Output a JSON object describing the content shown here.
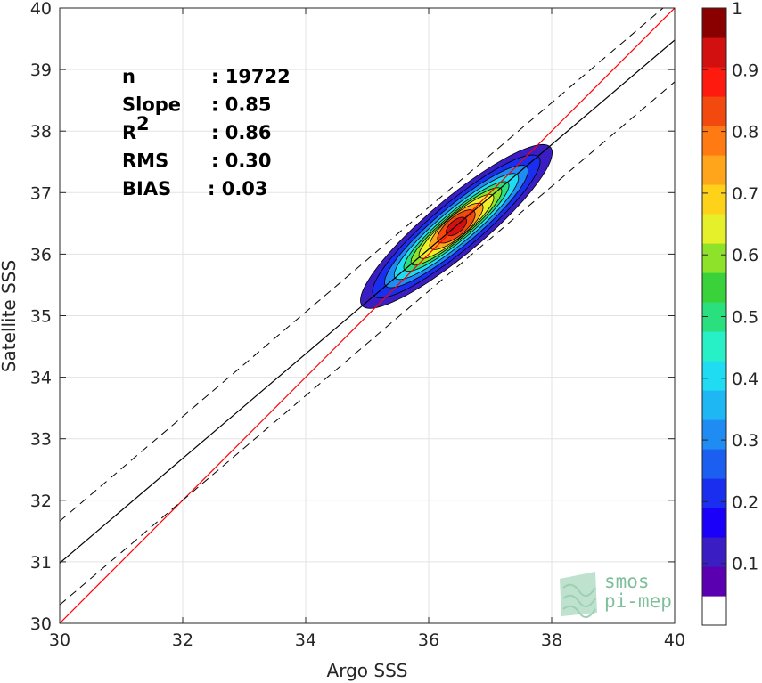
{
  "chart_data": {
    "type": "density_scatter",
    "xlabel": "Argo SSS",
    "ylabel": "Satellite SSS",
    "xlim": [
      30,
      40
    ],
    "ylim": [
      30,
      40
    ],
    "xticks": [
      "30",
      "32",
      "34",
      "36",
      "38",
      "40"
    ],
    "yticks": [
      "30",
      "31",
      "32",
      "33",
      "34",
      "35",
      "36",
      "37",
      "38",
      "39",
      "40"
    ],
    "grid": true,
    "stats": [
      {
        "label": "n",
        "value": ": 19722"
      },
      {
        "label": "Slope",
        "value": ": 0.85"
      },
      {
        "label": "R",
        "sup": "2",
        "value": ": 0.86"
      },
      {
        "label": "RMS",
        "value": ": 0.30"
      },
      {
        "label": "BIAS",
        "value": ": 0.03"
      }
    ],
    "lines": {
      "identity": {
        "slope": 1,
        "intercept": 0,
        "color": "#ff0000"
      },
      "fit": {
        "x": [
          30,
          40
        ],
        "y": [
          30.98,
          39.48
        ],
        "color": "#000000"
      },
      "fit_upper": {
        "x": [
          30,
          40
        ],
        "y": [
          31.66,
          40.16
        ],
        "style": "dashed"
      },
      "fit_lower": {
        "x": [
          30,
          40
        ],
        "y": [
          30.3,
          38.8
        ],
        "style": "dashed"
      }
    },
    "density": {
      "center": [
        36.45,
        36.45
      ],
      "axis_angle_deg": 40,
      "levels": [
        {
          "level": 0.05,
          "a": 2.0,
          "b": 0.45,
          "color": "#3a1ec4"
        },
        {
          "level": 0.15,
          "a": 1.75,
          "b": 0.38,
          "color": "#1a2ef0"
        },
        {
          "level": 0.25,
          "a": 1.5,
          "b": 0.32,
          "color": "#1f8cf4"
        },
        {
          "level": 0.35,
          "a": 1.3,
          "b": 0.27,
          "color": "#20dcf2"
        },
        {
          "level": 0.45,
          "a": 1.1,
          "b": 0.23,
          "color": "#2adf7e"
        },
        {
          "level": 0.55,
          "a": 0.95,
          "b": 0.2,
          "color": "#8fe22a"
        },
        {
          "level": 0.65,
          "a": 0.78,
          "b": 0.18,
          "color": "#f0f02a"
        },
        {
          "level": 0.75,
          "a": 0.55,
          "b": 0.17,
          "color": "#ffa51c"
        },
        {
          "level": 0.85,
          "a": 0.38,
          "b": 0.15,
          "color": "#f24a0e"
        },
        {
          "level": 0.95,
          "a": 0.2,
          "b": 0.1,
          "color": "#d21010"
        }
      ]
    },
    "colorbar": {
      "range": [
        0,
        1
      ],
      "ticks": [
        "0.1",
        "0.2",
        "0.3",
        "0.4",
        "0.5",
        "0.6",
        "0.7",
        "0.8",
        "0.9",
        "1"
      ],
      "colors": [
        "#ffffff",
        "#5a00b0",
        "#3a1ec4",
        "#1a00f8",
        "#1a2ef0",
        "#1a5ff0",
        "#1f8cf4",
        "#1fb6f4",
        "#20dcf2",
        "#28f0c6",
        "#2adf7e",
        "#3ad23a",
        "#8fe22a",
        "#e6f02a",
        "#ffd21a",
        "#ffa51c",
        "#ff7a12",
        "#f24a0e",
        "#ff1a10",
        "#d21010",
        "#8a0000"
      ]
    },
    "watermark": {
      "line1": "smos",
      "line2": "pi-mep"
    }
  }
}
